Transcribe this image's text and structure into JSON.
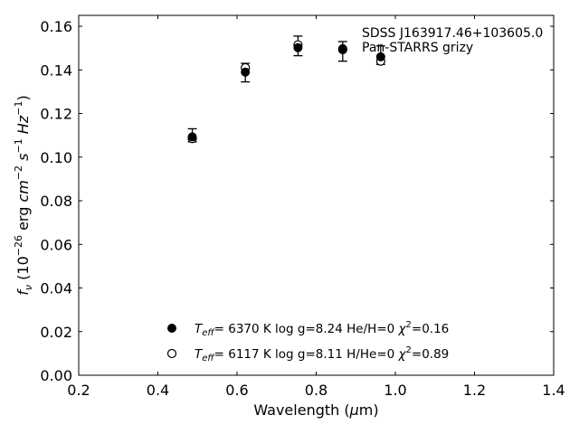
{
  "chart_data": {
    "type": "scatter",
    "title": "",
    "xlabel": "Wavelength (μm)",
    "ylabel": "f_ν (10^-26 erg cm^-2 s^-1 Hz^-1)",
    "xlim": [
      0.2,
      1.4
    ],
    "ylim": [
      0.0,
      0.165
    ],
    "xticks": [
      0.2,
      0.4,
      0.6,
      0.8,
      1.0,
      1.2,
      1.4
    ],
    "yticks": [
      0.0,
      0.02,
      0.04,
      0.06,
      0.08,
      0.1,
      0.12,
      0.14,
      0.16
    ],
    "xtick_labels": [
      "0.2",
      "0.4",
      "0.6",
      "0.8",
      "1.0",
      "1.2",
      "1.4"
    ],
    "ytick_labels": [
      "0.00",
      "0.02",
      "0.04",
      "0.06",
      "0.08",
      "0.10",
      "0.12",
      "0.14",
      "0.16"
    ],
    "grid": false,
    "annotations": [
      "SDSS J163917.46+103605.0",
      "Pan-STARRS grizy"
    ],
    "observed": {
      "x": [
        0.487,
        0.621,
        0.754,
        0.867,
        0.963
      ],
      "y": [
        0.11,
        0.1385,
        0.1505,
        0.1485,
        0.1465
      ],
      "yerr_lower": [
        0.107,
        0.1345,
        0.1465,
        0.144,
        0.1425
      ],
      "yerr_upper": [
        0.113,
        0.143,
        0.1555,
        0.153,
        0.151
      ]
    },
    "series": [
      {
        "name": "T_eff= 6370 K  log g=8.24  He/H=0  χ²=0.16",
        "marker": "filled-circle",
        "x": [
          0.487,
          0.621,
          0.754,
          0.867,
          0.963
        ],
        "y": [
          0.1093,
          0.139,
          0.1502,
          0.1497,
          0.146
        ]
      },
      {
        "name": "T_eff= 6117 K  log g=8.11  H/He=0  χ²=0.89",
        "marker": "open-circle",
        "x": [
          0.487,
          0.621,
          0.754,
          0.867,
          0.963
        ],
        "y": [
          0.1085,
          0.141,
          0.1515,
          0.1493,
          0.144
        ]
      }
    ],
    "legend": {
      "placement": "bottom-center",
      "entries": [
        {
          "teff": "6370 K",
          "logg": "log g=8.24",
          "comp": "He/H=0",
          "chi": "=0.16"
        },
        {
          "teff": "6117 K",
          "logg": "log g=8.11",
          "comp": "H/He=0",
          "chi": "=0.89"
        }
      ]
    }
  }
}
